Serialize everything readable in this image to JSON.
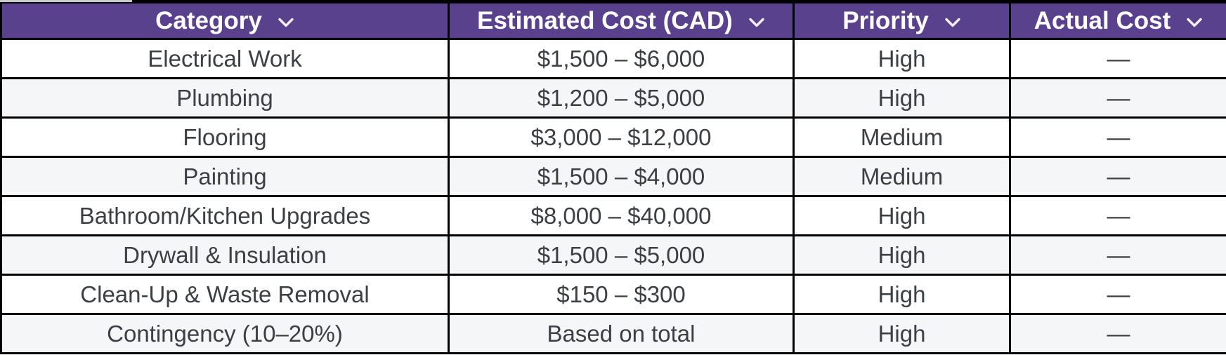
{
  "table": {
    "columns": [
      {
        "label": "Category"
      },
      {
        "label": "Estimated Cost (CAD)"
      },
      {
        "label": "Priority"
      },
      {
        "label": "Actual Cost"
      }
    ],
    "rows": [
      {
        "category": "Electrical Work",
        "estimated_cost": "$1,500 – $6,000",
        "priority": "High",
        "actual_cost": "—"
      },
      {
        "category": "Plumbing",
        "estimated_cost": "$1,200 – $5,000",
        "priority": "High",
        "actual_cost": "—"
      },
      {
        "category": "Flooring",
        "estimated_cost": "$3,000 – $12,000",
        "priority": "Medium",
        "actual_cost": "—"
      },
      {
        "category": "Painting",
        "estimated_cost": "$1,500 – $4,000",
        "priority": "Medium",
        "actual_cost": "—"
      },
      {
        "category": "Bathroom/Kitchen Upgrades",
        "estimated_cost": "$8,000 – $40,000",
        "priority": "High",
        "actual_cost": "—"
      },
      {
        "category": "Drywall & Insulation",
        "estimated_cost": "$1,500 – $5,000",
        "priority": "High",
        "actual_cost": "—"
      },
      {
        "category": "Clean-Up & Waste Removal",
        "estimated_cost": "$150 – $300",
        "priority": "High",
        "actual_cost": "—"
      },
      {
        "category": "Contingency (10–20%)",
        "estimated_cost": "Based on total",
        "priority": "High",
        "actual_cost": "—"
      }
    ]
  },
  "icons": {
    "header_dropdown": "chevron-down-icon"
  },
  "colors": {
    "header_bg": "#59418e",
    "header_text": "#ffffff",
    "row_bg": "#ffffff",
    "row_alt_bg": "#f5f6f8",
    "body_text": "#3c4045",
    "border": "#000000"
  }
}
